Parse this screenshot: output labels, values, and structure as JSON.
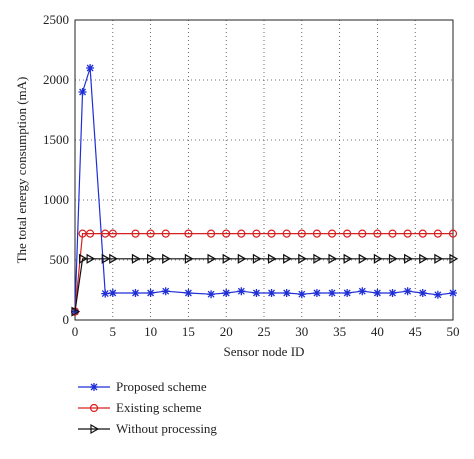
{
  "chart_data": {
    "type": "line",
    "x_label": "Sensor node ID",
    "y_label": "The total energy consumption (mA)",
    "x": [
      0,
      1,
      2,
      4,
      5,
      8,
      10,
      12,
      15,
      18,
      20,
      22,
      24,
      26,
      28,
      30,
      32,
      34,
      36,
      38,
      40,
      42,
      44,
      46,
      48,
      50
    ],
    "series": [
      {
        "name": "Proposed scheme",
        "color": "#1f2fd6",
        "marker": "star",
        "values": [
          70,
          1900,
          2100,
          220,
          225,
          225,
          225,
          240,
          225,
          215,
          225,
          240,
          225,
          225,
          225,
          215,
          225,
          225,
          225,
          240,
          225,
          225,
          240,
          225,
          210,
          225
        ]
      },
      {
        "name": "Existing scheme",
        "color": "#d62020",
        "marker": "circle",
        "values": [
          70,
          720,
          720,
          720,
          720,
          720,
          720,
          720,
          720,
          720,
          720,
          720,
          720,
          720,
          720,
          720,
          720,
          720,
          720,
          720,
          720,
          720,
          720,
          720,
          720,
          720
        ]
      },
      {
        "name": "Without processing",
        "color": "#111111",
        "marker": "triangle",
        "values": [
          70,
          510,
          510,
          510,
          510,
          510,
          510,
          510,
          510,
          510,
          510,
          510,
          510,
          510,
          510,
          510,
          510,
          510,
          510,
          510,
          510,
          510,
          510,
          510,
          510,
          510
        ]
      }
    ],
    "xlim": [
      0,
      50
    ],
    "xticks": [
      0,
      5,
      10,
      15,
      20,
      25,
      30,
      35,
      40,
      45,
      50
    ],
    "ylim": [
      0,
      2500
    ],
    "yticks": [
      0,
      500,
      1000,
      1500,
      2000,
      2500
    ],
    "grid": true,
    "legend": "below"
  }
}
